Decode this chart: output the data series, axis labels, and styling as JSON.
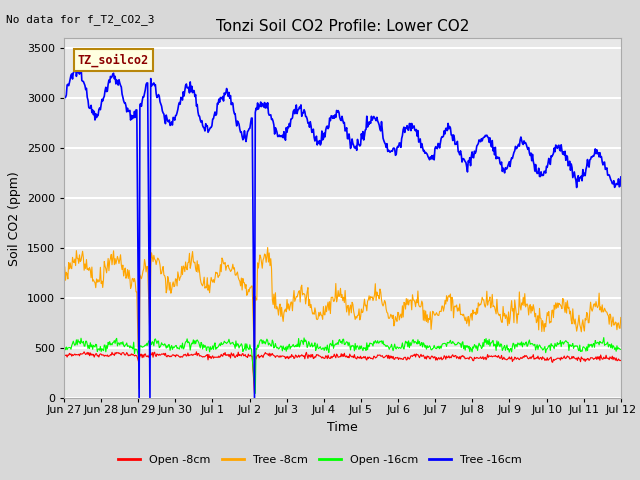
{
  "title": "Tonzi Soil CO2 Profile: Lower CO2",
  "no_data_text": "No data for f_T2_CO2_3",
  "ylabel": "Soil CO2 (ppm)",
  "xlabel": "Time",
  "legend_label": "TZ_soilco2",
  "ylim": [
    0,
    3600
  ],
  "yticks": [
    0,
    500,
    1000,
    1500,
    2000,
    2500,
    3000,
    3500
  ],
  "series_labels": [
    "Open -8cm",
    "Tree -8cm",
    "Open -16cm",
    "Tree -16cm"
  ],
  "series_colors": [
    "red",
    "orange",
    "green",
    "blue"
  ],
  "fig_bg_color": "#d8d8d8",
  "plot_bg_color": "#e8e8e8",
  "title_fontsize": 11,
  "label_fontsize": 9,
  "tick_fontsize": 8,
  "nodata_fontsize": 8
}
